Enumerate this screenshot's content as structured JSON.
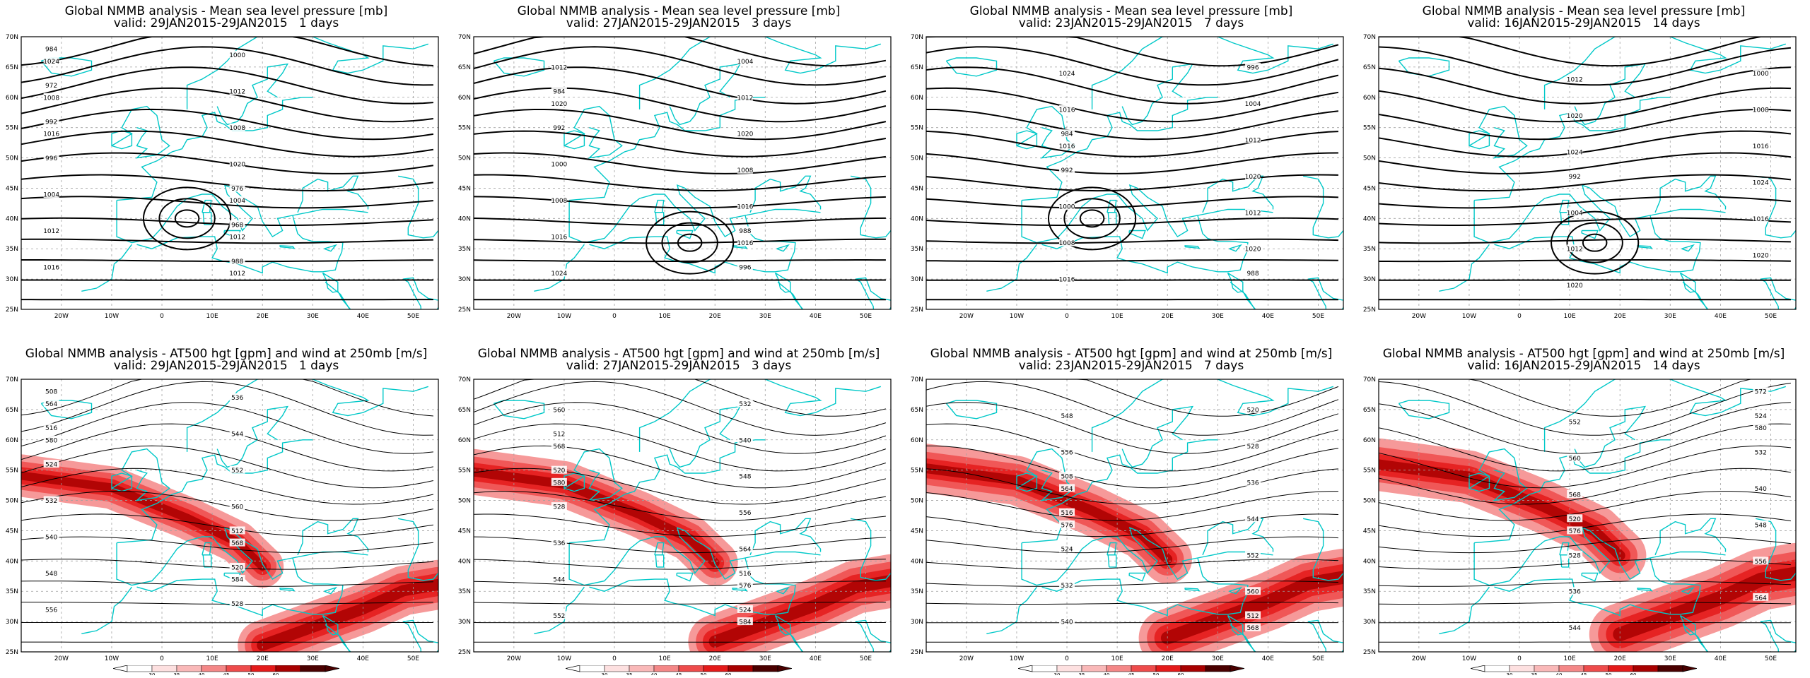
{
  "panels": [
    {
      "id": "mslp-1",
      "kind": "mslp",
      "title": "Global NMMB analysis - Mean sea level pressure [mb]",
      "valid": "valid: 29JAN2015-29JAN2015   1 days",
      "labels": [
        "984",
        "976",
        "972",
        "968",
        "992",
        "988",
        "996",
        "1000",
        "1004",
        "1012",
        "1012",
        "1008",
        "1016",
        "1020",
        "1024",
        "1004",
        "1008",
        "1012",
        "1016",
        "1012"
      ]
    },
    {
      "id": "mslp-3",
      "kind": "mslp",
      "title": "Global NMMB analysis - Mean sea level pressure [mb]",
      "valid": "valid: 27JAN2015-29JAN2015   3 days",
      "labels": [
        "984",
        "988",
        "992",
        "996",
        "1000",
        "1004",
        "1008",
        "1012",
        "1016",
        "1020",
        "1024",
        "1008",
        "1012",
        "1016",
        "1020",
        "1016"
      ]
    },
    {
      "id": "mslp-7",
      "kind": "mslp",
      "title": "Global NMMB analysis - Mean sea level pressure [mb]",
      "valid": "valid: 23JAN2015-29JAN2015   7 days",
      "labels": [
        "984",
        "988",
        "992",
        "996",
        "1000",
        "1004",
        "1008",
        "1012",
        "1016",
        "1020",
        "1024",
        "1012",
        "1016",
        "1020",
        "1016"
      ]
    },
    {
      "id": "mslp-14",
      "kind": "mslp",
      "title": "Global NMMB analysis - Mean sea level pressure [mb]",
      "valid": "valid: 16JAN2015-29JAN2015   14 days",
      "labels": [
        "992",
        "1000",
        "1004",
        "1008",
        "1012",
        "1016",
        "1020",
        "1024",
        "1012",
        "1016",
        "1020",
        "1020",
        "1024"
      ]
    },
    {
      "id": "z500-1",
      "kind": "z500",
      "title": "Global NMMB analysis - AT500 hgt [gpm] and wind at 250mb [m/s]",
      "valid": "valid: 29JAN2015-29JAN2015   1 days",
      "labels": [
        "508",
        "512",
        "516",
        "520",
        "524",
        "528",
        "532",
        "536",
        "540",
        "544",
        "548",
        "552",
        "556",
        "560",
        "564",
        "568",
        "580",
        "584"
      ]
    },
    {
      "id": "z500-3",
      "kind": "z500",
      "title": "Global NMMB analysis - AT500 hgt [gpm] and wind at 250mb [m/s]",
      "valid": "valid: 27JAN2015-29JAN2015   3 days",
      "labels": [
        "512",
        "516",
        "520",
        "524",
        "528",
        "532",
        "536",
        "540",
        "544",
        "548",
        "552",
        "556",
        "560",
        "564",
        "568",
        "576",
        "580",
        "584"
      ]
    },
    {
      "id": "z500-7",
      "kind": "z500",
      "title": "Global NMMB analysis - AT500 hgt [gpm] and wind at 250mb [m/s]",
      "valid": "valid: 23JAN2015-29JAN2015   7 days",
      "labels": [
        "508",
        "512",
        "516",
        "520",
        "524",
        "528",
        "532",
        "536",
        "540",
        "544",
        "548",
        "552",
        "556",
        "560",
        "564",
        "568",
        "576"
      ]
    },
    {
      "id": "z500-14",
      "kind": "z500",
      "title": "Global NMMB analysis - AT500 hgt [gpm] and wind at 250mb [m/s]",
      "valid": "valid: 16JAN2015-29JAN2015   14 days",
      "labels": [
        "520",
        "524",
        "528",
        "532",
        "536",
        "540",
        "544",
        "548",
        "552",
        "556",
        "560",
        "564",
        "568",
        "572",
        "576",
        "580"
      ]
    }
  ],
  "axes": {
    "lat_labels": [
      "70N",
      "65N",
      "60N",
      "55N",
      "50N",
      "45N",
      "40N",
      "35N",
      "30N",
      "25N"
    ],
    "lon_labels": [
      "20W",
      "10W",
      "0",
      "10E",
      "20E",
      "30E",
      "40E",
      "50E"
    ]
  },
  "colorbar": {
    "ticks": [
      "30",
      "35",
      "40",
      "45",
      "50",
      "60"
    ],
    "colors": [
      "#ffffff",
      "#fde0e0",
      "#f9b8b8",
      "#f48787",
      "#ee4b4b",
      "#e41a1a",
      "#a80000",
      "#4a0000"
    ]
  },
  "colors": {
    "coast": "#00c8c8",
    "contour": "#000000",
    "grid": "#a0a0a0"
  }
}
